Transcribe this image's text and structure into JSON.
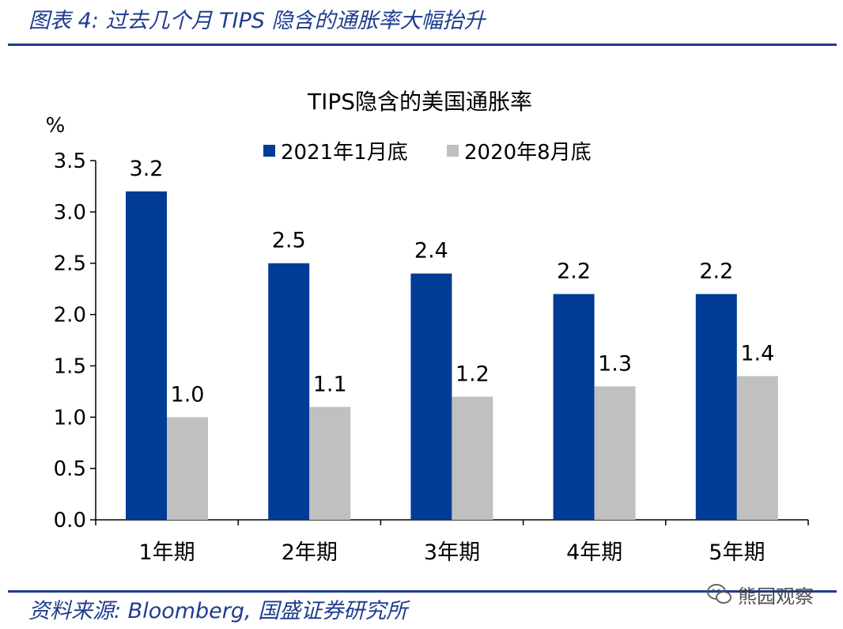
{
  "figure": {
    "header": "图表 4:  过去几个月 TIPS 隐含的通胀率大幅抬升",
    "source": "资料来源:  Bloomberg, 国盛证券研究所",
    "watermark": "熊园观察",
    "accent_color": "#1f3d8f"
  },
  "chart_data": {
    "type": "bar",
    "title": "TIPS隐含的美国通胀率",
    "ylabel": "%",
    "ylim": [
      0,
      3.5
    ],
    "yticks": [
      "0.0",
      "0.5",
      "1.0",
      "1.5",
      "2.0",
      "2.5",
      "3.0",
      "3.5"
    ],
    "categories": [
      "1年期",
      "2年期",
      "3年期",
      "4年期",
      "5年期"
    ],
    "series": [
      {
        "name": "2021年1月底",
        "color": "#003b96",
        "values": [
          3.2,
          2.5,
          2.4,
          2.2,
          2.2
        ],
        "labels": [
          "3.2",
          "2.5",
          "2.4",
          "2.2",
          "2.2"
        ]
      },
      {
        "name": "2020年8月底",
        "color": "#c0c0c0",
        "values": [
          1.0,
          1.1,
          1.2,
          1.3,
          1.4
        ],
        "labels": [
          "1.0",
          "1.1",
          "1.2",
          "1.3",
          "1.4"
        ]
      }
    ],
    "grid": false,
    "legend": "top-center"
  }
}
